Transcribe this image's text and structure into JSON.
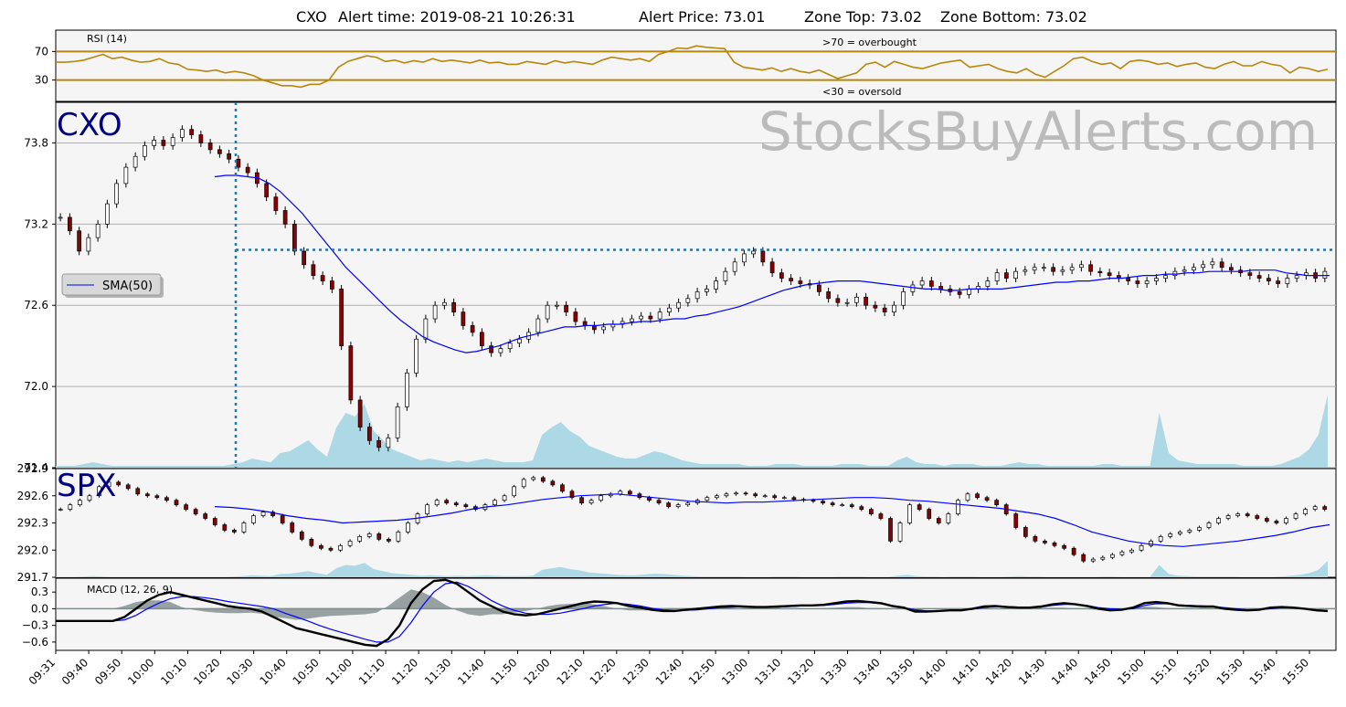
{
  "header": {
    "symbol": "CXO",
    "alert_time_label": "Alert time: 2019-08-21 10:26:31",
    "alert_price_label": "Alert Price: 73.01",
    "zone_top_label": "Zone Top: 73.02",
    "zone_bottom_label": "Zone Bottom: 73.02"
  },
  "watermark": "StocksBuyAlerts.com",
  "colors": {
    "panel_bg": "#f5f5f5",
    "rsi_line": "#b8860b",
    "sma": "#0000ff",
    "volume": "#add8e6",
    "alert_line": "#1f77b4",
    "symbol_label": "#000080",
    "grid": "#b0b0b0",
    "macd_hist": "#7f8c8d",
    "watermark": "#bbbbbb"
  },
  "chart_data": [
    {
      "id": "rsi",
      "type": "line",
      "title": "RSI (14)",
      "ylim": [
        0,
        100
      ],
      "y_ticks": [
        30,
        70
      ],
      "y_tick_labels": [
        "30",
        "70"
      ],
      "annotations": [
        ">70 = overbought",
        "<30 = oversold"
      ],
      "values": [
        55,
        55,
        56,
        58,
        62,
        66,
        60,
        62,
        58,
        55,
        56,
        60,
        54,
        52,
        45,
        44,
        42,
        44,
        40,
        42,
        40,
        36,
        30,
        26,
        22,
        22,
        20,
        24,
        24,
        30,
        48,
        56,
        60,
        64,
        62,
        56,
        58,
        54,
        57,
        55,
        60,
        56,
        58,
        56,
        54,
        58,
        54,
        55,
        52,
        52,
        56,
        54,
        52,
        57,
        54,
        56,
        54,
        52,
        58,
        62,
        60,
        58,
        60,
        56,
        66,
        70,
        75,
        74,
        78,
        76,
        75,
        74,
        55,
        48,
        46,
        44,
        47,
        42,
        46,
        42,
        40,
        44,
        38,
        32,
        36,
        40,
        52,
        55,
        48,
        56,
        52,
        48,
        46,
        50,
        54,
        56,
        58,
        48,
        50,
        52,
        46,
        42,
        40,
        46,
        38,
        34,
        42,
        50,
        60,
        62,
        56,
        52,
        54,
        46,
        56,
        58,
        56,
        52,
        54,
        49,
        52,
        54,
        48,
        46,
        52,
        56,
        50,
        50,
        56,
        52,
        50,
        40,
        48,
        46,
        42,
        45
      ]
    },
    {
      "id": "price",
      "type": "candlestick",
      "symbol": "CXO",
      "ylim": [
        71.4,
        74.1
      ],
      "y_ticks": [
        71.4,
        72.0,
        72.6,
        73.2,
        73.8
      ],
      "y_tick_labels": [
        "71.4",
        "72.0",
        "72.6",
        "73.2",
        "73.8"
      ],
      "alert_price": 73.01,
      "alert_time": "10:26:31",
      "legend": "SMA(50)",
      "close": [
        73.25,
        73.15,
        73.0,
        73.1,
        73.2,
        73.35,
        73.5,
        73.62,
        73.7,
        73.78,
        73.82,
        73.78,
        73.84,
        73.9,
        73.86,
        73.8,
        73.75,
        73.72,
        73.68,
        73.62,
        73.58,
        73.5,
        73.4,
        73.3,
        73.2,
        73.0,
        72.9,
        72.82,
        72.78,
        72.72,
        72.3,
        71.9,
        71.7,
        71.6,
        71.55,
        71.62,
        71.85,
        72.1,
        72.35,
        72.5,
        72.6,
        72.62,
        72.55,
        72.45,
        72.4,
        72.3,
        72.25,
        72.28,
        72.32,
        72.35,
        72.4,
        72.5,
        72.6,
        72.6,
        72.55,
        72.48,
        72.45,
        72.42,
        72.44,
        72.46,
        72.48,
        72.5,
        72.52,
        72.5,
        72.55,
        72.58,
        72.62,
        72.65,
        72.7,
        72.72,
        72.78,
        72.85,
        72.92,
        72.98,
        73.0,
        72.92,
        72.84,
        72.8,
        72.78,
        72.76,
        72.75,
        72.7,
        72.65,
        72.62,
        72.62,
        72.66,
        72.6,
        72.58,
        72.55,
        72.6,
        72.7,
        72.75,
        72.78,
        72.74,
        72.72,
        72.7,
        72.68,
        72.72,
        72.74,
        72.78,
        72.84,
        72.8,
        72.85,
        72.86,
        72.88,
        72.88,
        72.85,
        72.86,
        72.88,
        72.9,
        72.85,
        72.84,
        72.82,
        72.8,
        72.78,
        72.76,
        72.78,
        72.8,
        72.82,
        72.85,
        72.86,
        72.88,
        72.9,
        72.92,
        72.88,
        72.86,
        72.84,
        72.82,
        72.8,
        72.78,
        72.76,
        72.8,
        72.82,
        72.84,
        72.8,
        72.85
      ],
      "sma50": [
        73.55,
        73.56,
        73.56,
        73.55,
        73.54,
        73.5,
        73.44,
        73.36,
        73.28,
        73.18,
        73.08,
        72.98,
        72.88,
        72.8,
        72.72,
        72.64,
        72.56,
        72.49,
        72.43,
        72.37,
        72.33,
        72.3,
        72.27,
        72.25,
        72.26,
        72.28,
        72.3,
        72.33,
        72.36,
        72.38,
        72.4,
        72.42,
        72.44,
        72.44,
        72.45,
        72.45,
        72.46,
        72.46,
        72.47,
        72.48,
        72.48,
        72.49,
        72.5,
        72.5,
        72.52,
        72.53,
        72.55,
        72.57,
        72.59,
        72.62,
        72.65,
        72.68,
        72.71,
        72.73,
        72.75,
        72.76,
        72.77,
        72.78,
        72.78,
        72.78,
        72.77,
        72.76,
        72.75,
        72.74,
        72.73,
        72.72,
        72.72,
        72.71,
        72.71,
        72.72,
        72.72,
        72.72,
        72.72,
        72.73,
        72.74,
        72.75,
        72.76,
        72.77,
        72.77,
        72.78,
        72.78,
        72.79,
        72.8,
        72.8,
        72.81,
        72.82,
        72.82,
        72.83,
        72.83,
        72.84,
        72.84,
        72.85,
        72.85,
        72.85,
        72.85,
        72.86,
        72.86,
        72.86,
        72.84,
        72.83,
        72.82,
        72.82,
        72.82
      ]
    },
    {
      "id": "volume",
      "type": "area",
      "values": [
        1,
        1,
        1,
        2,
        3,
        2,
        1,
        1,
        1,
        1,
        1,
        1,
        1,
        1,
        1,
        1,
        1,
        1,
        1,
        2,
        3,
        5,
        4,
        3,
        8,
        9,
        12,
        15,
        10,
        6,
        22,
        30,
        28,
        35,
        20,
        15,
        10,
        8,
        6,
        4,
        5,
        4,
        3,
        4,
        3,
        4,
        5,
        4,
        3,
        3,
        3,
        4,
        18,
        22,
        25,
        20,
        17,
        12,
        10,
        8,
        6,
        5,
        5,
        7,
        9,
        8,
        6,
        4,
        3,
        2,
        2,
        2,
        2,
        2,
        1,
        1,
        1,
        2,
        2,
        2,
        1,
        1,
        1,
        1,
        2,
        2,
        2,
        1,
        1,
        1,
        4,
        6,
        3,
        2,
        2,
        1,
        2,
        2,
        2,
        1,
        1,
        1,
        2,
        3,
        2,
        2,
        1,
        1,
        1,
        1,
        1,
        1,
        2,
        2,
        1,
        1,
        1,
        1,
        30,
        8,
        4,
        3,
        2,
        2,
        2,
        2,
        2,
        1,
        1,
        1,
        1,
        2,
        4,
        6,
        10,
        18,
        40
      ]
    },
    {
      "id": "spx",
      "type": "candlestick",
      "symbol": "SPX",
      "ylim": [
        291.7,
        292.9
      ],
      "y_ticks": [
        291.7,
        292.0,
        292.3,
        292.6,
        292.9
      ],
      "y_tick_labels": [
        "291.7",
        "292.0",
        "292.3",
        "292.6",
        "292.9"
      ],
      "close": [
        292.45,
        292.5,
        292.55,
        292.6,
        292.7,
        292.75,
        292.72,
        292.68,
        292.62,
        292.6,
        292.58,
        292.55,
        292.5,
        292.45,
        292.4,
        292.35,
        292.28,
        292.22,
        292.2,
        292.3,
        292.38,
        292.42,
        292.38,
        292.3,
        292.2,
        292.12,
        292.05,
        292.02,
        292.0,
        292.05,
        292.1,
        292.15,
        292.18,
        292.12,
        292.1,
        292.2,
        292.3,
        292.4,
        292.5,
        292.55,
        292.52,
        292.5,
        292.48,
        292.45,
        292.5,
        292.55,
        292.6,
        292.7,
        292.78,
        292.8,
        292.76,
        292.72,
        292.65,
        292.58,
        292.52,
        292.55,
        292.6,
        292.62,
        292.65,
        292.62,
        292.58,
        292.55,
        292.52,
        292.48,
        292.5,
        292.52,
        292.55,
        292.58,
        292.6,
        292.62,
        292.63,
        292.62,
        292.6,
        292.6,
        292.58,
        292.58,
        292.56,
        292.55,
        292.54,
        292.52,
        292.5,
        292.5,
        292.48,
        292.45,
        292.4,
        292.35,
        292.1,
        292.3,
        292.5,
        292.45,
        292.35,
        292.3,
        292.4,
        292.55,
        292.62,
        292.58,
        292.55,
        292.5,
        292.4,
        292.25,
        292.15,
        292.1,
        292.08,
        292.05,
        292.02,
        291.95,
        291.88,
        291.9,
        291.92,
        291.95,
        291.98,
        292.0,
        292.05,
        292.1,
        292.15,
        292.18,
        292.2,
        292.22,
        292.25,
        292.3,
        292.35,
        292.38,
        292.4,
        292.38,
        292.35,
        292.32,
        292.3,
        292.35,
        292.4,
        292.45,
        292.48,
        292.45
      ],
      "sma50": [
        292.48,
        292.47,
        292.45,
        292.42,
        292.38,
        292.35,
        292.33,
        292.3,
        292.31,
        292.32,
        292.33,
        292.35,
        292.38,
        292.41,
        292.45,
        292.48,
        292.5,
        292.53,
        292.56,
        292.58,
        292.6,
        292.61,
        292.62,
        292.6,
        292.58,
        292.56,
        292.54,
        292.53,
        292.52,
        292.53,
        292.53,
        292.54,
        292.55,
        292.56,
        292.57,
        292.58,
        292.58,
        292.57,
        292.55,
        292.54,
        292.52,
        292.5,
        292.48,
        292.46,
        292.43,
        292.4,
        292.35,
        292.28,
        292.2,
        292.15,
        292.1,
        292.07,
        292.05,
        292.04,
        292.06,
        292.08,
        292.1,
        292.13,
        292.16,
        292.2,
        292.25,
        292.28
      ]
    },
    {
      "id": "macd",
      "type": "line",
      "title": "MACD (12, 26, 9)",
      "ylim": [
        -0.75,
        0.55
      ],
      "y_ticks": [
        -0.6,
        -0.3,
        0.0,
        0.3
      ],
      "y_tick_labels": [
        "−0.6",
        "−0.3",
        "0.0",
        "0.3"
      ],
      "macd": [
        -0.22,
        -0.22,
        -0.22,
        -0.22,
        -0.22,
        -0.22,
        -0.15,
        0.0,
        0.15,
        0.25,
        0.3,
        0.25,
        0.2,
        0.15,
        0.1,
        0.05,
        0.02,
        0.0,
        -0.05,
        -0.15,
        -0.25,
        -0.35,
        -0.4,
        -0.45,
        -0.5,
        -0.55,
        -0.6,
        -0.65,
        -0.67,
        -0.55,
        -0.3,
        0.1,
        0.35,
        0.5,
        0.52,
        0.45,
        0.3,
        0.15,
        0.05,
        -0.05,
        -0.1,
        -0.12,
        -0.1,
        -0.05,
        0.0,
        0.05,
        0.1,
        0.13,
        0.12,
        0.1,
        0.05,
        0.02,
        -0.02,
        -0.04,
        -0.04,
        -0.02,
        0.0,
        0.02,
        0.04,
        0.05,
        0.04,
        0.03,
        0.03,
        0.04,
        0.05,
        0.06,
        0.06,
        0.07,
        0.1,
        0.13,
        0.14,
        0.12,
        0.1,
        0.05,
        0.02,
        -0.05,
        -0.05,
        -0.04,
        -0.03,
        -0.03,
        0.0,
        0.04,
        0.05,
        0.03,
        0.02,
        0.02,
        0.04,
        0.08,
        0.1,
        0.08,
        0.05,
        0.0,
        -0.03,
        -0.02,
        0.02,
        0.1,
        0.12,
        0.1,
        0.06,
        0.05,
        0.04,
        0.04,
        0.0,
        -0.02,
        -0.03,
        -0.02,
        0.02,
        0.03,
        0.02,
        0.0,
        -0.03,
        -0.04
      ],
      "signal": [
        -0.22,
        -0.22,
        -0.22,
        -0.22,
        -0.22,
        -0.22,
        -0.2,
        -0.12,
        0.0,
        0.1,
        0.18,
        0.22,
        0.22,
        0.2,
        0.17,
        0.13,
        0.1,
        0.07,
        0.04,
        0.0,
        -0.08,
        -0.15,
        -0.22,
        -0.3,
        -0.37,
        -0.43,
        -0.49,
        -0.55,
        -0.6,
        -0.6,
        -0.5,
        -0.25,
        0.05,
        0.3,
        0.45,
        0.48,
        0.4,
        0.28,
        0.15,
        0.05,
        -0.03,
        -0.08,
        -0.1,
        -0.1,
        -0.08,
        -0.04,
        0.0,
        0.05,
        0.08,
        0.1,
        0.08,
        0.05,
        0.01,
        -0.02,
        -0.03,
        -0.03,
        -0.02,
        0.0,
        0.02,
        0.03,
        0.04,
        0.04,
        0.03,
        0.03,
        0.04,
        0.05,
        0.06,
        0.06,
        0.08,
        0.1,
        0.11,
        0.11,
        0.09,
        0.06,
        0.02,
        -0.02,
        -0.04,
        -0.04,
        -0.03,
        -0.03,
        -0.01,
        0.02,
        0.04,
        0.04,
        0.03,
        0.02,
        0.03,
        0.06,
        0.08,
        0.08,
        0.06,
        0.02,
        0.0,
        -0.01,
        0.0,
        0.06,
        0.09,
        0.09,
        0.07,
        0.06,
        0.05,
        0.04,
        0.02,
        0.0,
        -0.02,
        -0.02,
        0.0,
        0.02,
        0.02,
        0.0,
        -0.02,
        -0.03
      ],
      "histogram": [
        0,
        0,
        0,
        0,
        0,
        0,
        0.05,
        0.12,
        0.15,
        0.15,
        0.12,
        0.03,
        -0.02,
        -0.05,
        -0.07,
        -0.08,
        -0.08,
        -0.07,
        -0.09,
        -0.15,
        -0.17,
        -0.2,
        -0.18,
        -0.15,
        -0.13,
        -0.12,
        -0.11,
        -0.1,
        -0.07,
        0.05,
        0.2,
        0.35,
        0.3,
        0.2,
        0.07,
        -0.03,
        -0.1,
        -0.13,
        -0.1,
        -0.1,
        -0.07,
        -0.04,
        0.0,
        0.05,
        0.08,
        0.09,
        0.1,
        0.08,
        0.04,
        0.0,
        -0.03,
        -0.03,
        -0.03,
        -0.02,
        -0.01,
        0.01,
        0.02,
        0.02,
        0.02,
        0.02,
        0.0,
        -0.01,
        0.0,
        0.01,
        0.01,
        0.01,
        0.0,
        0.01,
        0.02,
        0.03,
        0.03,
        0.01,
        0.01,
        -0.01,
        0.0,
        -0.03,
        -0.01,
        0.0,
        0.0,
        0.0,
        0.01,
        0.02,
        0.01,
        -0.01,
        -0.01,
        0.0,
        0.01,
        0.02,
        0.02,
        0.0,
        -0.01,
        -0.02,
        -0.03,
        -0.01,
        0.02,
        0.04,
        0.03,
        0.01,
        -0.01,
        -0.01,
        -0.01,
        0.0,
        -0.02,
        -0.02,
        -0.01,
        0.0,
        0.02,
        0.01,
        0.0,
        0.0,
        -0.01,
        -0.01
      ]
    }
  ],
  "x_axis": {
    "tick_labels": [
      "09:31",
      "09:40",
      "09:50",
      "10:00",
      "10:10",
      "10:20",
      "10:30",
      "10:40",
      "10:50",
      "11:00",
      "11:10",
      "11:20",
      "11:30",
      "11:40",
      "11:50",
      "12:00",
      "12:10",
      "12:20",
      "12:30",
      "12:40",
      "12:50",
      "13:00",
      "13:10",
      "13:20",
      "13:30",
      "13:40",
      "13:50",
      "14:00",
      "14:10",
      "14:20",
      "14:30",
      "14:40",
      "14:50",
      "15:00",
      "15:10",
      "15:20",
      "15:30",
      "15:40",
      "15:50"
    ]
  }
}
